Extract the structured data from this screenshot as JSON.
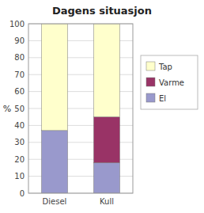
{
  "chart_data": {
    "type": "bar",
    "title": "Dagens situasjon",
    "ylabel": "%",
    "categories": [
      "Diesel",
      "Kull"
    ],
    "series": [
      {
        "name": "El",
        "color": "#9999cc",
        "values": [
          37,
          18
        ]
      },
      {
        "name": "Varme",
        "color": "#993366",
        "values": [
          0,
          27
        ]
      },
      {
        "name": "Tap",
        "color": "#ffffcc",
        "values": [
          63,
          55
        ]
      }
    ],
    "stacked": true,
    "ylim": [
      0,
      100
    ],
    "yticks": [
      0,
      10,
      20,
      30,
      40,
      50,
      60,
      70,
      80,
      90,
      100
    ],
    "grid": true,
    "legend": "right"
  }
}
